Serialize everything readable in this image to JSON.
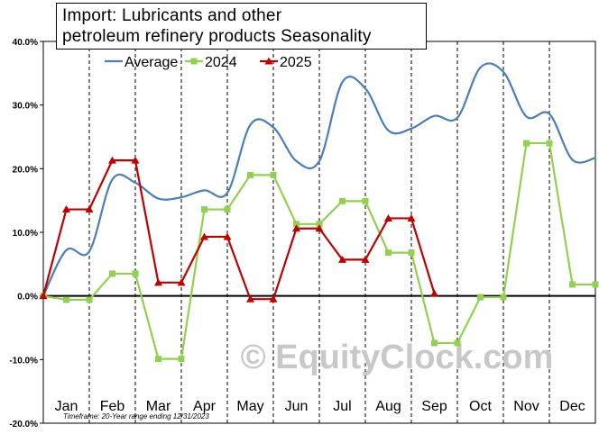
{
  "title_line1": "Import: Lubricants and other",
  "title_line2": "petroleum refinery products Seasonality",
  "watermark": "© EquityClock.com",
  "footnote": "Timeframe: 20-Year range ending 12/31/2023",
  "chart_data": {
    "type": "line",
    "title": "Import: Lubricants and other petroleum refinery products Seasonality",
    "categories": [
      "Jan",
      "Feb",
      "Mar",
      "Apr",
      "May",
      "Jun",
      "Jul",
      "Aug",
      "Sep",
      "Oct",
      "Nov",
      "Dec"
    ],
    "ylim": [
      -20,
      40
    ],
    "yticks": [
      -20,
      -10,
      0,
      10,
      20,
      30,
      40
    ],
    "ytick_labels": [
      "-20.0%",
      "-10.0%",
      "0.0%",
      "10.0%",
      "20.0%",
      "30.0%",
      "40.0%"
    ],
    "legend_position": "top",
    "grid": "dashed vertical lines at month boundaries",
    "series": [
      {
        "name": "Average",
        "color": "#4a7ebb",
        "style": "smooth",
        "points": [
          [
            0,
            0.0
          ],
          [
            0.5,
            7.2
          ],
          [
            1.0,
            7.0
          ],
          [
            1.5,
            18.3
          ],
          [
            2.0,
            17.8
          ],
          [
            2.5,
            15.3
          ],
          [
            3.0,
            15.5
          ],
          [
            3.5,
            16.6
          ],
          [
            4.0,
            16.2
          ],
          [
            4.5,
            26.9
          ],
          [
            5.0,
            26.5
          ],
          [
            5.5,
            21.2
          ],
          [
            6.0,
            21.2
          ],
          [
            6.5,
            33.6
          ],
          [
            7.0,
            32.6
          ],
          [
            7.5,
            26.0
          ],
          [
            8.0,
            26.3
          ],
          [
            8.5,
            28.3
          ],
          [
            9.0,
            28.0
          ],
          [
            9.5,
            35.9
          ],
          [
            10.0,
            35.2
          ],
          [
            10.5,
            28.2
          ],
          [
            11.0,
            28.6
          ],
          [
            11.5,
            21.4
          ],
          [
            12.0,
            21.7
          ]
        ]
      },
      {
        "name": "2024",
        "color": "#92d050",
        "marker": "square",
        "points": [
          [
            0,
            0.0
          ],
          [
            0.5,
            -0.6
          ],
          [
            1.0,
            -0.6
          ],
          [
            1.5,
            3.5
          ],
          [
            2.0,
            3.5
          ],
          [
            2.5,
            -9.9
          ],
          [
            3.0,
            -9.9
          ],
          [
            3.5,
            13.6
          ],
          [
            4.0,
            13.6
          ],
          [
            4.5,
            19.0
          ],
          [
            5.0,
            19.0
          ],
          [
            5.5,
            11.3
          ],
          [
            6.0,
            11.3
          ],
          [
            6.5,
            14.9
          ],
          [
            7.0,
            14.9
          ],
          [
            7.5,
            6.8
          ],
          [
            8.0,
            6.8
          ],
          [
            8.5,
            -7.4
          ],
          [
            9.0,
            -7.4
          ],
          [
            9.5,
            -0.2
          ],
          [
            10.0,
            -0.2
          ],
          [
            10.5,
            24.0
          ],
          [
            11.0,
            24.0
          ],
          [
            11.5,
            1.8
          ],
          [
            12.0,
            1.8
          ]
        ]
      },
      {
        "name": "2025",
        "color": "#c00000",
        "marker": "triangle",
        "points": [
          [
            0,
            0.0
          ],
          [
            0.5,
            13.6
          ],
          [
            1.0,
            13.6
          ],
          [
            1.5,
            21.3
          ],
          [
            2.0,
            21.3
          ],
          [
            2.5,
            2.1
          ],
          [
            3.0,
            2.1
          ],
          [
            3.5,
            9.3
          ],
          [
            4.0,
            9.3
          ],
          [
            4.5,
            -0.5
          ],
          [
            5.0,
            -0.5
          ],
          [
            5.5,
            10.6
          ],
          [
            6.0,
            10.6
          ],
          [
            6.5,
            5.7
          ],
          [
            7.0,
            5.7
          ],
          [
            7.5,
            12.2
          ],
          [
            8.0,
            12.2
          ],
          [
            8.5,
            0.4
          ]
        ]
      }
    ]
  }
}
